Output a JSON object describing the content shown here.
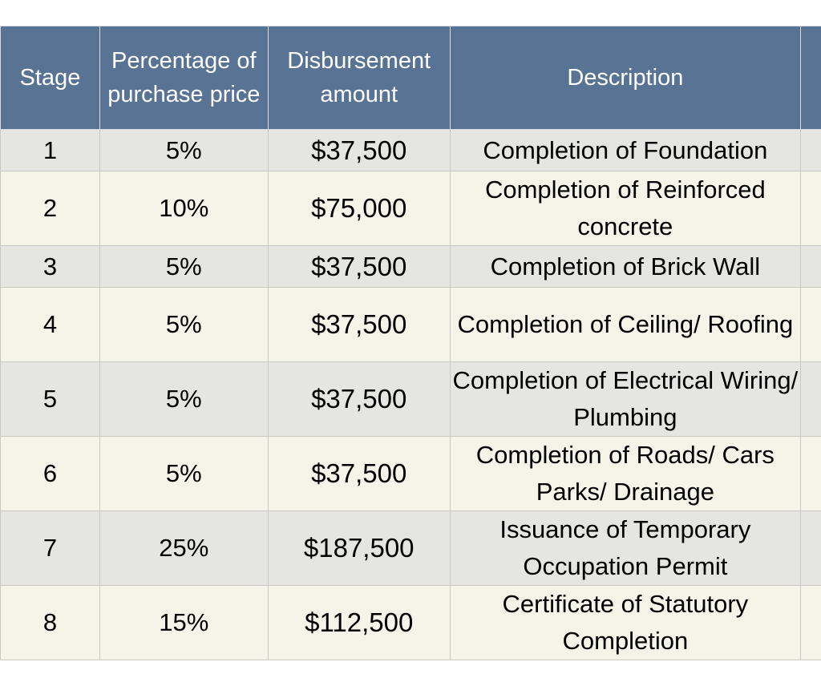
{
  "table": {
    "headers": {
      "stage": "Stage",
      "percentage": "Percentage of purchase price",
      "amount": "Disbursement amount",
      "description": "Description"
    },
    "rows": [
      {
        "stage": "1",
        "percentage": "5%",
        "amount": "$37,500",
        "description": "Completion of Foundation"
      },
      {
        "stage": "2",
        "percentage": "10%",
        "amount": "$75,000",
        "description": "Completion of Reinforced concrete"
      },
      {
        "stage": "3",
        "percentage": "5%",
        "amount": "$37,500",
        "description": "Completion of Brick Wall"
      },
      {
        "stage": "4",
        "percentage": "5%",
        "amount": "$37,500",
        "description": "Completion of Ceiling/ Roofing"
      },
      {
        "stage": "5",
        "percentage": "5%",
        "amount": "$37,500",
        "description": "Completion of Electrical Wiring/ Plumbing"
      },
      {
        "stage": "6",
        "percentage": "5%",
        "amount": "$37,500",
        "description": "Completion of Roads/ Cars Parks/ Drainage"
      },
      {
        "stage": "7",
        "percentage": "25%",
        "amount": "$187,500",
        "description": "Issuance of Temporary Occupation Permit"
      },
      {
        "stage": "8",
        "percentage": "15%",
        "amount": "$112,500",
        "description": "Certificate of Statutory Completion"
      }
    ]
  },
  "colors": {
    "header_bg": "#587394",
    "header_text": "#ffffff",
    "row_odd_bg": "#e5e5e1",
    "row_even_bg": "#f4f4e9"
  }
}
